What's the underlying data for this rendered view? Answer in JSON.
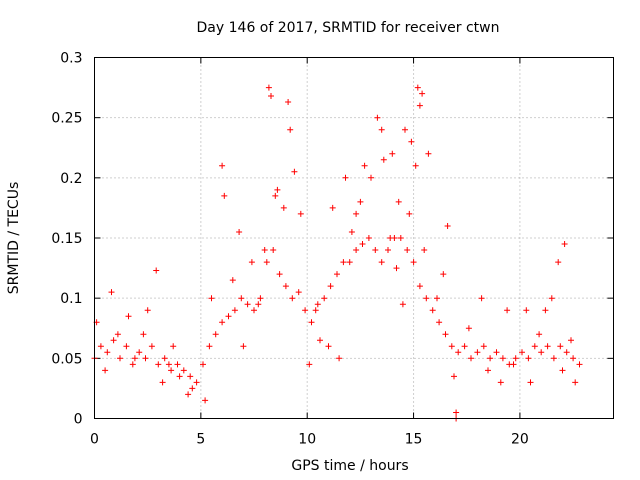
{
  "chart_data": {
    "type": "scatter",
    "title": "Day 146 of 2017, SRMTID for receiver ctwn",
    "xlabel": "GPS time / hours",
    "ylabel": "SRMTID / TECUs",
    "xlim": [
      0,
      24.4
    ],
    "ylim": [
      0,
      0.3
    ],
    "x_ticks": [
      0,
      5,
      10,
      15,
      20
    ],
    "x_tick_labels": [
      "0",
      "5",
      "10",
      "15",
      "20"
    ],
    "y_ticks": [
      0,
      0.05,
      0.1,
      0.15,
      0.2,
      0.25,
      0.3
    ],
    "y_tick_labels": [
      "0",
      "0.05",
      "0.1",
      "0.15",
      "0.2",
      "0.25",
      "0.3"
    ],
    "grid": true,
    "marker": "plus",
    "series": [
      {
        "name": "SRMTID",
        "color": "#ff0000",
        "x": [
          0.0,
          0.3,
          0.6,
          0.9,
          1.2,
          1.5,
          1.8,
          2.1,
          2.4,
          2.7,
          3.0,
          3.3,
          3.6,
          3.9,
          4.2,
          4.5,
          4.8,
          5.1,
          5.4,
          5.7,
          6.0,
          6.3,
          6.6,
          6.9,
          7.2,
          7.5,
          7.8,
          8.1,
          8.4,
          8.7,
          9.0,
          9.3,
          9.6,
          9.9,
          10.2,
          10.5,
          10.8,
          11.1,
          11.4,
          11.7,
          12.0,
          12.3,
          12.6,
          12.9,
          13.2,
          13.5,
          13.8,
          14.1,
          14.4,
          14.7,
          15.0,
          15.3,
          15.6,
          15.9,
          16.2,
          16.5,
          16.8,
          17.1,
          17.4,
          17.7,
          18.0,
          18.3,
          18.6,
          18.9,
          19.2,
          19.5,
          19.8,
          20.1,
          20.4,
          20.7,
          21.0,
          21.3,
          21.6,
          21.9,
          22.2,
          22.5,
          22.8,
          0.1,
          0.8,
          1.6,
          2.5,
          2.9,
          3.7,
          4.4,
          5.2,
          6.0,
          6.1,
          6.8,
          7.4,
          8.2,
          8.3,
          8.5,
          8.9,
          9.1,
          9.2,
          9.4,
          10.6,
          11.2,
          11.8,
          12.3,
          12.7,
          13.0,
          13.3,
          13.5,
          13.6,
          14.0,
          14.3,
          14.6,
          14.9,
          15.2,
          15.3,
          15.4,
          15.7,
          16.4,
          16.6,
          17.0,
          17.0,
          18.2,
          19.4,
          20.3,
          21.8,
          22.1,
          22.6,
          0.5,
          1.1,
          1.9,
          2.3,
          3.2,
          3.5,
          4.0,
          4.6,
          5.5,
          6.5,
          7.0,
          7.7,
          8.0,
          8.6,
          9.7,
          10.1,
          10.4,
          11.0,
          11.5,
          12.1,
          12.5,
          13.9,
          14.2,
          14.5,
          14.8,
          15.1,
          15.5,
          16.1,
          16.9,
          17.6,
          18.5,
          19.1,
          19.7,
          20.5,
          20.9,
          21.2,
          21.5,
          22.0,
          22.4
        ],
        "y": [
          0.05,
          0.06,
          0.055,
          0.065,
          0.05,
          0.06,
          0.045,
          0.055,
          0.05,
          0.06,
          0.045,
          0.05,
          0.04,
          0.045,
          0.04,
          0.035,
          0.03,
          0.045,
          0.06,
          0.07,
          0.08,
          0.085,
          0.09,
          0.1,
          0.095,
          0.09,
          0.1,
          0.13,
          0.14,
          0.12,
          0.11,
          0.1,
          0.105,
          0.09,
          0.08,
          0.095,
          0.1,
          0.11,
          0.12,
          0.13,
          0.13,
          0.14,
          0.145,
          0.15,
          0.14,
          0.13,
          0.14,
          0.15,
          0.15,
          0.14,
          0.13,
          0.11,
          0.1,
          0.09,
          0.08,
          0.07,
          0.06,
          0.055,
          0.06,
          0.05,
          0.055,
          0.06,
          0.05,
          0.055,
          0.05,
          0.045,
          0.05,
          0.055,
          0.05,
          0.06,
          0.055,
          0.06,
          0.05,
          0.06,
          0.055,
          0.05,
          0.045,
          0.08,
          0.105,
          0.085,
          0.09,
          0.123,
          0.06,
          0.02,
          0.015,
          0.21,
          0.185,
          0.155,
          0.13,
          0.275,
          0.268,
          0.185,
          0.175,
          0.263,
          0.24,
          0.205,
          0.065,
          0.175,
          0.2,
          0.17,
          0.21,
          0.2,
          0.25,
          0.24,
          0.215,
          0.22,
          0.18,
          0.24,
          0.23,
          0.275,
          0.26,
          0.27,
          0.22,
          0.12,
          0.16,
          0.005,
          0.0,
          0.1,
          0.09,
          0.09,
          0.13,
          0.145,
          0.03,
          0.04,
          0.07,
          0.05,
          0.07,
          0.03,
          0.045,
          0.035,
          0.025,
          0.1,
          0.115,
          0.06,
          0.095,
          0.14,
          0.19,
          0.17,
          0.045,
          0.09,
          0.06,
          0.05,
          0.155,
          0.18,
          0.15,
          0.125,
          0.095,
          0.17,
          0.21,
          0.14,
          0.1,
          0.035,
          0.075,
          0.04,
          0.03,
          0.045,
          0.03,
          0.07,
          0.09,
          0.1,
          0.04,
          0.065
        ]
      }
    ]
  }
}
